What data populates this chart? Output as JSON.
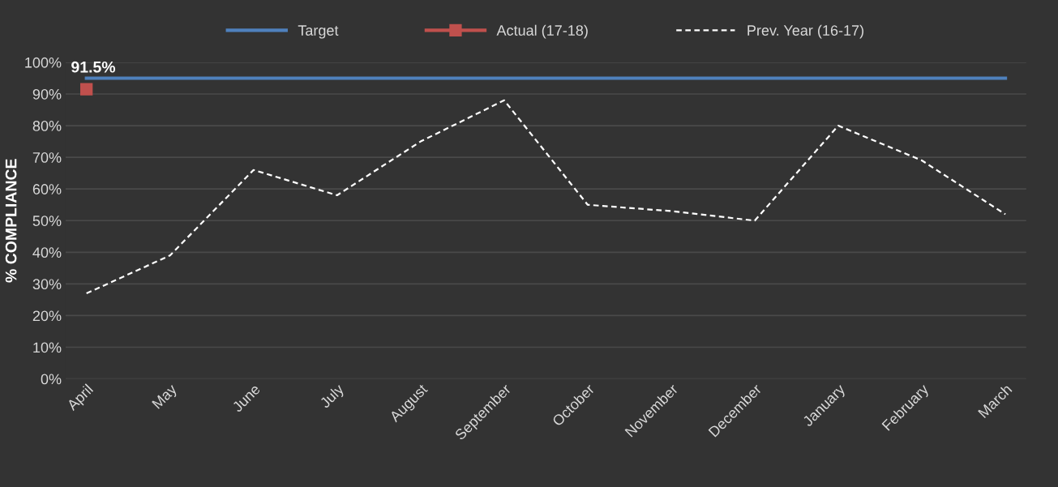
{
  "chart_data": {
    "type": "line",
    "ylabel": "% COMPLIANCE",
    "categories": [
      "April",
      "May",
      "June",
      "July",
      "August",
      "September",
      "October",
      "November",
      "December",
      "January",
      "February",
      "March"
    ],
    "series": [
      {
        "name": "Target",
        "color": "#4f81bd",
        "marker": "none",
        "line_style": "solid",
        "values": [
          95,
          95,
          95,
          95,
          95,
          95,
          95,
          95,
          95,
          95,
          95,
          95
        ]
      },
      {
        "name": "Actual (17-18)",
        "color": "#c0504d",
        "marker": "square",
        "line_style": "solid",
        "values": [
          91.5,
          null,
          null,
          null,
          null,
          null,
          null,
          null,
          null,
          null,
          null,
          null
        ],
        "value_labels": [
          "91.5%",
          null,
          null,
          null,
          null,
          null,
          null,
          null,
          null,
          null,
          null,
          null
        ]
      },
      {
        "name": "Prev. Year (16-17)",
        "color": "#ffffff",
        "marker": "none",
        "line_style": "dashed",
        "values": [
          27,
          39,
          66,
          58,
          75,
          88,
          55,
          53,
          50,
          80,
          69,
          52
        ]
      }
    ],
    "ylim": [
      0,
      100
    ],
    "yticks": [
      {
        "value": 0,
        "label": "0%"
      },
      {
        "value": 10,
        "label": "10%"
      },
      {
        "value": 20,
        "label": "20%"
      },
      {
        "value": 30,
        "label": "30%"
      },
      {
        "value": 40,
        "label": "40%"
      },
      {
        "value": 50,
        "label": "50%"
      },
      {
        "value": 60,
        "label": "60%"
      },
      {
        "value": 70,
        "label": "70%"
      },
      {
        "value": 80,
        "label": "80%"
      },
      {
        "value": 90,
        "label": "90%"
      },
      {
        "value": 100,
        "label": "100%"
      }
    ],
    "grid": "y",
    "legend": "top"
  }
}
